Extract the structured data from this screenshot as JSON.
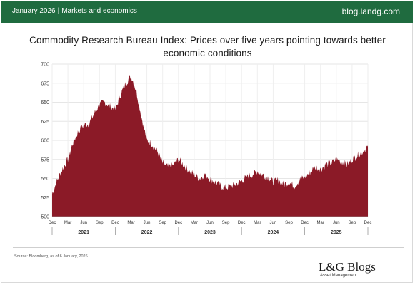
{
  "header": {
    "date": "January 2026",
    "section": "Markets and economics",
    "site": "blog.landg.com"
  },
  "footer": {
    "source": "Source: Bloomberg, as of 6 January, 2026",
    "brand_name": "L&G Blogs",
    "brand_sub": "Asset Management"
  },
  "colors": {
    "header_green": "#1f6b3f",
    "series_fill": "#8b1a27"
  },
  "chart_data": {
    "type": "area",
    "title": "Commodity Research Bureau Index: Prices over five years pointing towards better economic conditions",
    "ylim": [
      500,
      700
    ],
    "yticks": [
      500,
      525,
      550,
      575,
      600,
      625,
      650,
      675,
      700
    ],
    "grid": true,
    "month_ticks": [
      "Dec",
      "Mar",
      "Jun",
      "Sep",
      "Dec",
      "Mar",
      "Jun",
      "Sep",
      "Dec",
      "Mar",
      "Jun",
      "Sep",
      "Dec",
      "Mar",
      "Jun",
      "Sep",
      "Dec",
      "Mar",
      "Jun",
      "Sep",
      "Dec"
    ],
    "years": [
      "2021",
      "2022",
      "2023",
      "2024",
      "2025"
    ],
    "x": [
      "2020-12",
      "2021-01",
      "2021-02",
      "2021-03",
      "2021-04",
      "2021-05",
      "2021-06",
      "2021-07",
      "2021-08",
      "2021-09",
      "2021-10",
      "2021-11",
      "2021-12",
      "2022-01",
      "2022-02",
      "2022-03",
      "2022-04",
      "2022-05",
      "2022-06",
      "2022-07",
      "2022-08",
      "2022-09",
      "2022-10",
      "2022-11",
      "2022-12",
      "2023-01",
      "2023-02",
      "2023-03",
      "2023-04",
      "2023-05",
      "2023-06",
      "2023-07",
      "2023-08",
      "2023-09",
      "2023-10",
      "2023-11",
      "2023-12",
      "2024-01",
      "2024-02",
      "2024-03",
      "2024-04",
      "2024-05",
      "2024-06",
      "2024-07",
      "2024-08",
      "2024-09",
      "2024-10",
      "2024-11",
      "2024-12",
      "2025-01",
      "2025-02",
      "2025-03",
      "2025-04",
      "2025-05",
      "2025-06",
      "2025-07",
      "2025-08",
      "2025-09",
      "2025-10",
      "2025-11",
      "2025-12"
    ],
    "values": [
      530,
      548,
      563,
      575,
      598,
      612,
      620,
      622,
      635,
      647,
      650,
      645,
      640,
      660,
      675,
      685,
      665,
      630,
      600,
      595,
      585,
      570,
      565,
      567,
      575,
      568,
      560,
      555,
      550,
      556,
      550,
      545,
      540,
      538,
      540,
      543,
      547,
      552,
      555,
      560,
      555,
      552,
      545,
      548,
      542,
      545,
      540,
      548,
      552,
      558,
      565,
      562,
      568,
      570,
      575,
      572,
      568,
      575,
      580,
      585,
      592
    ]
  }
}
